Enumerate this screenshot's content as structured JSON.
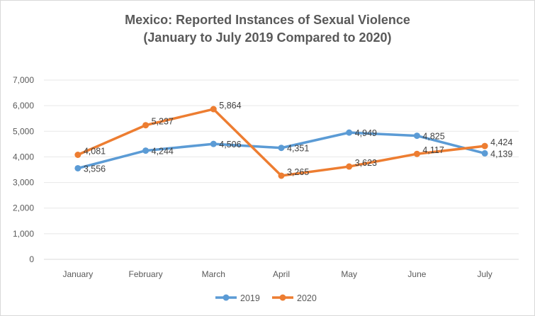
{
  "chart_data": {
    "type": "line",
    "title": "Mexico: Reported Instances of Sexual Violence",
    "subtitle": "(January to July 2019 Compared to 2020)",
    "categories": [
      "January",
      "February",
      "March",
      "April",
      "May",
      "June",
      "July"
    ],
    "series": [
      {
        "name": "2019",
        "color": "#5b9bd5",
        "values": [
          3556,
          4244,
          4506,
          4351,
          4949,
          4825,
          4139
        ],
        "labels": [
          "3,556",
          "4,244",
          "4,506",
          "4,351",
          "4,949",
          "4,825",
          "4,139"
        ]
      },
      {
        "name": "2020",
        "color": "#ed7d31",
        "values": [
          4081,
          5237,
          5864,
          3265,
          3623,
          4117,
          4424
        ],
        "labels": [
          "4,081",
          "5,237",
          "5,864",
          "3,265",
          "3,623",
          "4,117",
          "4,424"
        ]
      }
    ],
    "yticks": [
      0,
      1000,
      2000,
      3000,
      4000,
      5000,
      6000,
      7000
    ],
    "ytick_labels": [
      "0",
      "1,000",
      "2,000",
      "3,000",
      "4,000",
      "5,000",
      "6,000",
      "7,000"
    ],
    "ylim": [
      0,
      7000
    ],
    "xlabel": "",
    "ylabel": "",
    "grid": true,
    "legend_position": "bottom"
  }
}
